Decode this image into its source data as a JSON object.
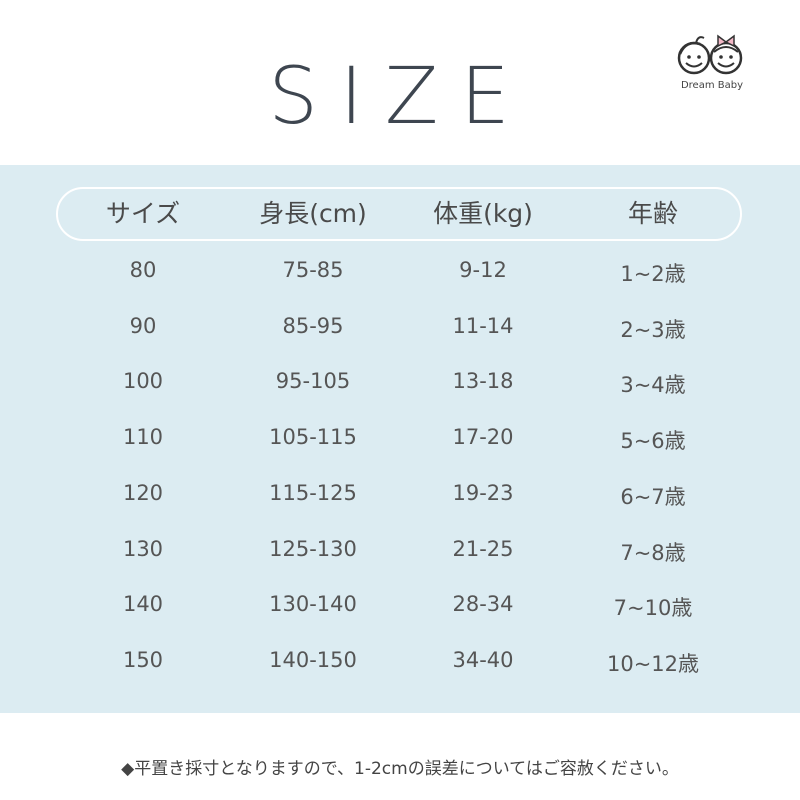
{
  "title": "SIZE",
  "logo": {
    "text": "Dream Baby"
  },
  "table": {
    "headers": [
      "サイズ",
      "身長(cm)",
      "体重(kg)",
      "年齢"
    ],
    "rows": [
      [
        "80",
        "75-85",
        "9-12",
        "1~2歳"
      ],
      [
        "90",
        "85-95",
        "11-14",
        "2~3歳"
      ],
      [
        "100",
        "95-105",
        "13-18",
        "3~4歳"
      ],
      [
        "110",
        "105-115",
        "17-20",
        "5~6歳"
      ],
      [
        "120",
        "115-125",
        "19-23",
        "6~7歳"
      ],
      [
        "130",
        "125-130",
        "21-25",
        "7~8歳"
      ],
      [
        "140",
        "130-140",
        "28-34",
        "7~10歳"
      ],
      [
        "150",
        "140-150",
        "34-40",
        "10~12歳"
      ]
    ]
  },
  "note": "◆平置き採寸となりますので、1-2cmの誤差についてはご容赦ください。",
  "colors": {
    "panel": "#dcecf2",
    "title": "#3e4650",
    "bow": "#f2b8c6"
  }
}
